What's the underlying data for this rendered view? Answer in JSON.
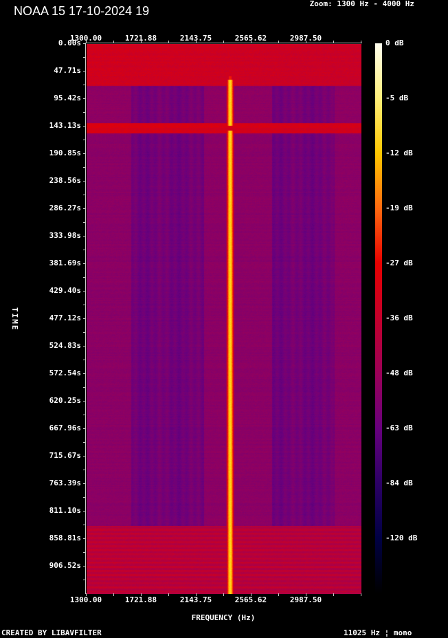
{
  "title": "NOAA 15 17-10-2024 19",
  "zoom_text": "Zoom: 1300 Hz - 4000 Hz",
  "footer": {
    "credit": "CREATED BY LIBAVFILTER",
    "rate": "11025 Hz ¦ mono"
  },
  "chart_data": {
    "type": "heatmap",
    "title": "NOAA 15 17-10-2024 19",
    "xlabel": "FREQUENCY (Hz)",
    "ylabel": "TIME",
    "x_ticks": [
      {
        "value": 1300.0,
        "label": "1300.00"
      },
      {
        "value": 1721.88,
        "label": "1721.88"
      },
      {
        "value": 2143.75,
        "label": "2143.75"
      },
      {
        "value": 2565.62,
        "label": "2565.62"
      },
      {
        "value": 2987.5,
        "label": "2987.50"
      }
    ],
    "x_step_hz": 421.875,
    "y_ticks": [
      {
        "value": 0.0,
        "label": "0.00s"
      },
      {
        "value": 47.71,
        "label": "47.71s"
      },
      {
        "value": 95.42,
        "label": "95.42s"
      },
      {
        "value": 143.13,
        "label": "143.13s"
      },
      {
        "value": 190.85,
        "label": "190.85s"
      },
      {
        "value": 238.56,
        "label": "238.56s"
      },
      {
        "value": 286.27,
        "label": "286.27s"
      },
      {
        "value": 333.98,
        "label": "333.98s"
      },
      {
        "value": 381.69,
        "label": "381.69s"
      },
      {
        "value": 429.4,
        "label": "429.40s"
      },
      {
        "value": 477.12,
        "label": "477.12s"
      },
      {
        "value": 524.83,
        "label": "524.83s"
      },
      {
        "value": 572.54,
        "label": "572.54s"
      },
      {
        "value": 620.25,
        "label": "620.25s"
      },
      {
        "value": 667.96,
        "label": "667.96s"
      },
      {
        "value": 715.67,
        "label": "715.67s"
      },
      {
        "value": 763.39,
        "label": "763.39s"
      },
      {
        "value": 811.1,
        "label": "811.10s"
      },
      {
        "value": 858.81,
        "label": "858.81s"
      },
      {
        "value": 906.52,
        "label": "906.52s"
      }
    ],
    "colorbar": [
      {
        "db": 0,
        "label": "0 dB",
        "color": "#fffff0"
      },
      {
        "db": -5,
        "label": "-5 dB",
        "color": "#fff07a"
      },
      {
        "db": -12,
        "label": "-12 dB",
        "color": "#ffc800"
      },
      {
        "db": -19,
        "label": "-19 dB",
        "color": "#ff6a10"
      },
      {
        "db": -27,
        "label": "-27 dB",
        "color": "#e80000"
      },
      {
        "db": -36,
        "label": "-36 dB",
        "color": "#c4002c"
      },
      {
        "db": -48,
        "label": "-48 dB",
        "color": "#9c0058"
      },
      {
        "db": -63,
        "label": "-63 dB",
        "color": "#68007e"
      },
      {
        "db": -84,
        "label": "-84 dB",
        "color": "#2c0066"
      },
      {
        "db": -120,
        "label": "-120 dB",
        "color": "#000044"
      },
      {
        "db": -150,
        "label": "",
        "color": "#000000"
      }
    ],
    "carrier": {
      "freq_hz": 2400,
      "level_db": -10,
      "start_s": 62,
      "gap_s": [
        141,
        150
      ]
    },
    "bands": [
      {
        "t0": 0,
        "t1": 72,
        "level_db": -33
      },
      {
        "t0": 72,
        "t1": 137,
        "level_db": -52
      },
      {
        "t0": 137,
        "t1": 155,
        "level_db": -31
      },
      {
        "t0": 155,
        "t1": 835,
        "level_db": -53
      },
      {
        "t0": 835,
        "t1": 954,
        "level_db": -36
      }
    ],
    "weak_regions_hz": [
      [
        1640,
        2200
      ],
      [
        2720,
        3200
      ]
    ]
  }
}
